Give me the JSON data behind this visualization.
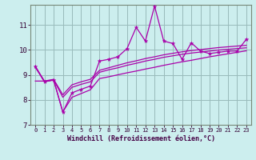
{
  "x": [
    0,
    1,
    2,
    3,
    4,
    5,
    6,
    7,
    8,
    9,
    10,
    11,
    12,
    13,
    14,
    15,
    16,
    17,
    18,
    19,
    20,
    21,
    22,
    23
  ],
  "y_jagged": [
    9.35,
    8.72,
    8.8,
    7.5,
    8.28,
    8.42,
    8.55,
    9.55,
    9.62,
    9.72,
    10.05,
    10.9,
    10.35,
    11.75,
    10.35,
    10.25,
    9.62,
    10.28,
    9.95,
    9.85,
    9.9,
    9.95,
    9.95,
    10.42
  ],
  "y_smooth1": [
    8.75,
    8.75,
    8.78,
    7.52,
    8.1,
    8.25,
    8.4,
    8.85,
    8.92,
    9.0,
    9.08,
    9.15,
    9.23,
    9.3,
    9.38,
    9.45,
    9.52,
    9.58,
    9.65,
    9.72,
    9.78,
    9.84,
    9.9,
    9.96
  ],
  "y_smooth2": [
    9.3,
    8.72,
    8.8,
    8.1,
    8.5,
    8.62,
    8.72,
    9.1,
    9.2,
    9.28,
    9.38,
    9.46,
    9.55,
    9.62,
    9.7,
    9.76,
    9.82,
    9.87,
    9.91,
    9.95,
    9.99,
    10.02,
    10.05,
    10.08
  ],
  "y_smooth3": [
    9.32,
    8.75,
    8.82,
    8.2,
    8.6,
    8.72,
    8.82,
    9.18,
    9.28,
    9.38,
    9.48,
    9.56,
    9.65,
    9.72,
    9.8,
    9.86,
    9.92,
    9.97,
    10.01,
    10.05,
    10.09,
    10.12,
    10.15,
    10.18
  ],
  "line_color": "#aa00aa",
  "bg_color": "#cceeee",
  "grid_color": "#99bbbb",
  "xlabel": "Windchill (Refroidissement éolien,°C)",
  "xlim": [
    -0.5,
    23.5
  ],
  "ylim": [
    7,
    11.8
  ],
  "yticks": [
    7,
    8,
    9,
    10,
    11
  ],
  "xticks": [
    0,
    1,
    2,
    3,
    4,
    5,
    6,
    7,
    8,
    9,
    10,
    11,
    12,
    13,
    14,
    15,
    16,
    17,
    18,
    19,
    20,
    21,
    22,
    23
  ]
}
